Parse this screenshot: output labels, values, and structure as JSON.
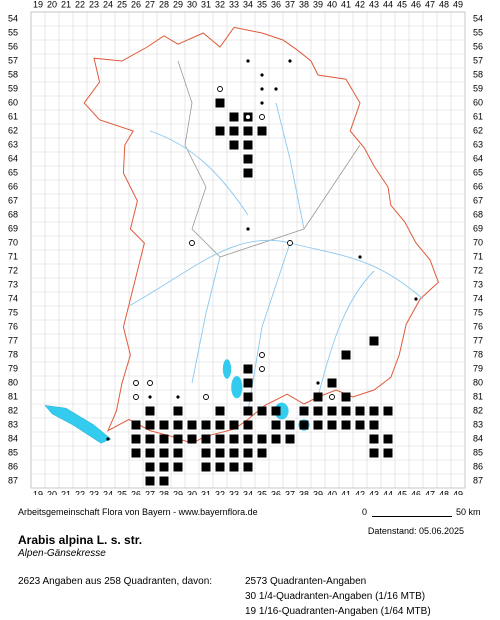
{
  "map": {
    "xticks": [
      19,
      20,
      21,
      22,
      23,
      24,
      25,
      26,
      27,
      28,
      29,
      30,
      31,
      32,
      33,
      34,
      35,
      36,
      37,
      38,
      39,
      40,
      41,
      42,
      43,
      44,
      45,
      46,
      47,
      48,
      49
    ],
    "yticks": [
      54,
      55,
      56,
      57,
      58,
      59,
      60,
      61,
      62,
      63,
      64,
      65,
      66,
      67,
      68,
      69,
      70,
      71,
      72,
      73,
      74,
      75,
      76,
      77,
      78,
      79,
      80,
      81,
      82,
      83,
      84,
      85,
      86,
      87
    ],
    "records": {
      "squares": [
        {
          "row": 60,
          "cols": [
            32
          ]
        },
        {
          "row": 61,
          "cols": [
            33,
            34
          ]
        },
        {
          "row": 62,
          "cols": [
            32,
            33,
            34,
            35
          ]
        },
        {
          "row": 63,
          "cols": [
            33,
            34
          ]
        },
        {
          "row": 64,
          "cols": [
            34
          ]
        },
        {
          "row": 65,
          "cols": [
            34
          ]
        },
        {
          "row": 77,
          "cols": [
            43
          ]
        },
        {
          "row": 78,
          "cols": [
            41
          ]
        },
        {
          "row": 79,
          "cols": [
            34
          ]
        },
        {
          "row": 80,
          "cols": [
            34,
            40
          ]
        },
        {
          "row": 81,
          "cols": [
            34,
            39,
            41
          ]
        },
        {
          "row": 82,
          "cols": [
            27,
            29,
            32,
            34,
            35,
            36,
            38,
            39,
            40,
            41,
            42,
            43,
            44
          ]
        },
        {
          "row": 83,
          "cols": [
            26,
            27,
            28,
            29,
            30,
            31,
            32,
            33,
            34,
            36,
            37,
            38,
            39,
            40,
            41,
            42,
            43
          ]
        },
        {
          "row": 84,
          "cols": [
            26,
            27,
            28,
            29,
            30,
            31,
            32,
            33,
            34,
            35,
            36,
            37,
            43,
            44
          ]
        },
        {
          "row": 85,
          "cols": [
            26,
            27,
            28,
            29,
            31,
            32,
            33,
            34,
            35,
            43,
            44
          ]
        },
        {
          "row": 86,
          "cols": [
            27,
            28,
            29,
            31,
            32,
            33,
            34
          ]
        },
        {
          "row": 87,
          "cols": [
            27,
            28
          ]
        }
      ],
      "circles": [
        {
          "row": 59,
          "cols": [
            32
          ]
        },
        {
          "row": 61,
          "cols": [
            34,
            35
          ]
        },
        {
          "row": 70,
          "cols": [
            30,
            37
          ]
        },
        {
          "row": 78,
          "cols": [
            35
          ]
        },
        {
          "row": 79,
          "cols": [
            35
          ]
        },
        {
          "row": 80,
          "cols": [
            26,
            27
          ]
        },
        {
          "row": 81,
          "cols": [
            26,
            31,
            40
          ]
        }
      ],
      "dots": [
        {
          "row": 57,
          "cols": [
            34,
            37
          ]
        },
        {
          "row": 58,
          "cols": [
            35
          ]
        },
        {
          "row": 59,
          "cols": [
            35,
            36
          ]
        },
        {
          "row": 60,
          "cols": [
            35
          ]
        },
        {
          "row": 69,
          "cols": [
            34
          ]
        },
        {
          "row": 71,
          "cols": [
            42
          ]
        },
        {
          "row": 74,
          "cols": [
            46
          ]
        },
        {
          "row": 80,
          "cols": [
            39
          ]
        },
        {
          "row": 81,
          "cols": [
            27,
            29
          ]
        },
        {
          "row": 84,
          "cols": [
            24
          ]
        }
      ]
    }
  },
  "footer": {
    "credit": "Arbeitsgemeinschaft Flora von Bayern - www.bayernflora.de",
    "scale_start": "0",
    "scale_end": "50 km",
    "date": "Datenstand: 05.06.2025",
    "species": "Arabis alpina L. s. str.",
    "common_name": "Alpen-Gänsekresse",
    "summary": "2623 Angaben aus 258 Quadranten, davon:",
    "details": [
      "2573 Quadranten-Angaben",
      "30 1/4-Quadranten-Angaben (1/16 MTB)",
      "19 1/16-Quadranten-Angaben (1/64 MTB)"
    ]
  }
}
